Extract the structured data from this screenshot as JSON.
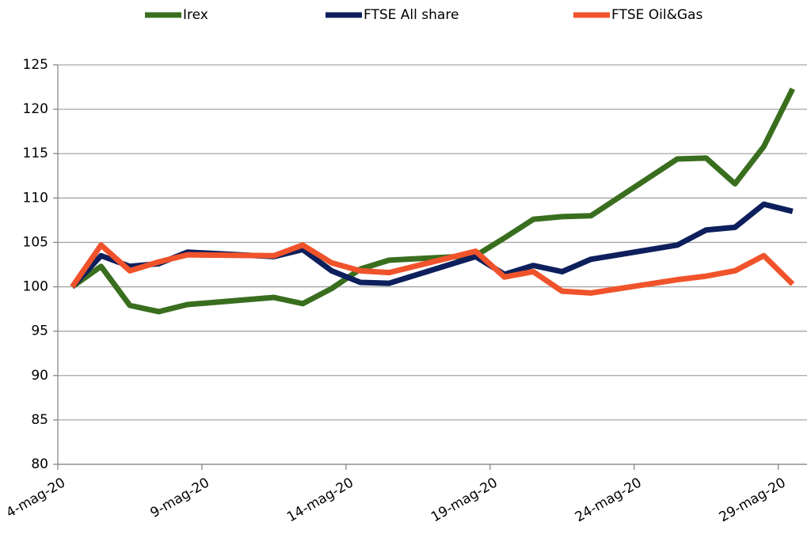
{
  "chart_data": {
    "type": "line",
    "x": [
      "2020-05-04",
      "2020-05-05",
      "2020-05-06",
      "2020-05-07",
      "2020-05-08",
      "2020-05-11",
      "2020-05-12",
      "2020-05-13",
      "2020-05-14",
      "2020-05-15",
      "2020-05-18",
      "2020-05-19",
      "2020-05-20",
      "2020-05-21",
      "2020-05-22",
      "2020-05-25",
      "2020-05-26",
      "2020-05-27",
      "2020-05-28",
      "2020-05-29"
    ],
    "series": [
      {
        "name": "Irex",
        "color": "#3a6e1f",
        "values": [
          100,
          102.3,
          97.9,
          97.2,
          98,
          98.8,
          98.1,
          99.8,
          102,
          103,
          103.5,
          105.5,
          107.6,
          107.9,
          108,
          114.4,
          114.5,
          111.6,
          115.8,
          122.3
        ]
      },
      {
        "name": "FTSE All share",
        "color": "#0d1f5c",
        "values": [
          100,
          103.5,
          102.3,
          102.6,
          103.9,
          103.4,
          104.2,
          101.8,
          100.5,
          100.4,
          103.4,
          101.4,
          102.4,
          101.7,
          103.1,
          104.7,
          106.4,
          106.7,
          109.3,
          108.5
        ]
      },
      {
        "name": "FTSE Oil&Gas",
        "color": "#f0532b",
        "values": [
          100,
          104.7,
          101.8,
          102.8,
          103.6,
          103.5,
          104.7,
          102.7,
          101.8,
          101.6,
          104,
          101.1,
          101.7,
          99.5,
          99.3,
          100.8,
          101.2,
          101.8,
          103.5,
          100.3
        ]
      }
    ],
    "xlim": [
      "2020-05-04",
      "2020-05-30"
    ],
    "xticks": [
      {
        "value": "2020-05-04",
        "label": "4-mag-20"
      },
      {
        "value": "2020-05-09",
        "label": "9-mag-20"
      },
      {
        "value": "2020-05-14",
        "label": "14-mag-20"
      },
      {
        "value": "2020-05-19",
        "label": "19-mag-20"
      },
      {
        "value": "2020-05-24",
        "label": "24-mag-20"
      },
      {
        "value": "2020-05-29",
        "label": "29-mag-20"
      }
    ],
    "ylim": [
      80,
      125
    ],
    "yticks": [
      80,
      85,
      90,
      95,
      100,
      105,
      110,
      115,
      120,
      125
    ],
    "grid": true,
    "legend": "top"
  }
}
